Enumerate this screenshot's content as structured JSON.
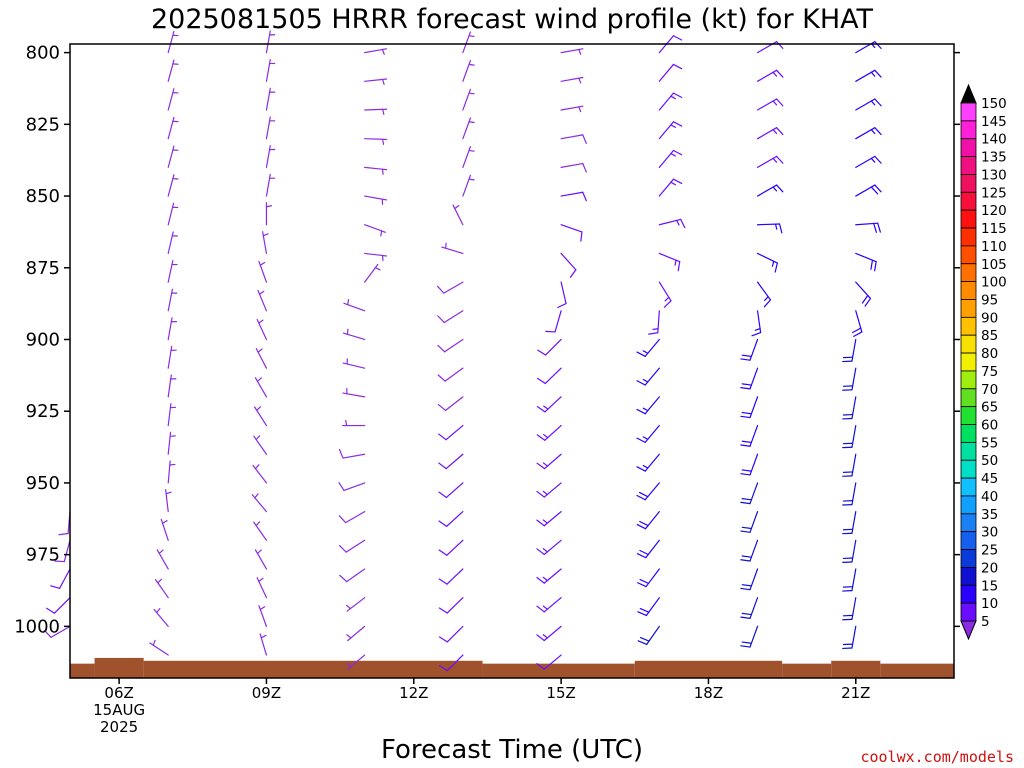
{
  "chart_data": {
    "type": "wind_profile",
    "title": "2025081505 HRRR forecast wind profile (kt) for KHAT",
    "xlabel": "Forecast Time (UTC)",
    "ylabel": "",
    "credit": "coolwx.com/models",
    "y_axis": {
      "ticks": [
        800,
        825,
        850,
        875,
        900,
        925,
        950,
        975,
        1000
      ],
      "ylim": [
        797,
        1018
      ],
      "inverted": true
    },
    "x_axis": {
      "ticks": [
        {
          "hour": 6,
          "label": "06Z",
          "sub1": "15AUG",
          "sub2": "2025"
        },
        {
          "hour": 9,
          "label": "09Z",
          "sub1": "",
          "sub2": ""
        },
        {
          "hour": 12,
          "label": "12Z",
          "sub1": "",
          "sub2": ""
        },
        {
          "hour": 15,
          "label": "15Z",
          "sub1": "",
          "sub2": ""
        },
        {
          "hour": 18,
          "label": "18Z",
          "sub1": "",
          "sub2": ""
        },
        {
          "hour": 21,
          "label": "21Z",
          "sub1": "",
          "sub2": ""
        }
      ],
      "xlim": [
        5.0,
        23.0
      ]
    },
    "terrain_color": "#a0522d",
    "terrain": [
      {
        "from": 5.0,
        "to": 5.5,
        "p": 1013
      },
      {
        "from": 5.5,
        "to": 6.5,
        "p": 1011
      },
      {
        "from": 6.5,
        "to": 13.4,
        "p": 1012
      },
      {
        "from": 13.4,
        "to": 16.5,
        "p": 1013
      },
      {
        "from": 16.5,
        "to": 19.5,
        "p": 1012
      },
      {
        "from": 19.5,
        "to": 20.5,
        "p": 1013
      },
      {
        "from": 20.5,
        "to": 21.5,
        "p": 1012
      },
      {
        "from": 21.5,
        "to": 23.0,
        "p": 1013
      }
    ],
    "levels": [
      800,
      810,
      820,
      830,
      840,
      850,
      860,
      870,
      880,
      890,
      900,
      910,
      920,
      930,
      940,
      950,
      960,
      970,
      980,
      990,
      1000,
      1010
    ],
    "series": [
      {
        "hour": 5.0,
        "bottom": 1000,
        "profile": [
          [
            960,
            185,
            8
          ],
          [
            975,
            200,
            10
          ],
          [
            990,
            225,
            10
          ],
          [
            1000,
            240,
            8
          ]
        ]
      },
      {
        "hour": 7.0,
        "bottom": 1012,
        "profile": [
          [
            800,
            15,
            5
          ],
          [
            850,
            15,
            5
          ],
          [
            900,
            10,
            5
          ],
          [
            950,
            5,
            5
          ],
          [
            980,
            330,
            5
          ],
          [
            1000,
            320,
            5
          ],
          [
            1012,
            300,
            5
          ]
        ]
      },
      {
        "hour": 9.0,
        "bottom": 1015,
        "profile": [
          [
            800,
            10,
            5
          ],
          [
            850,
            10,
            5
          ],
          [
            880,
            340,
            5
          ],
          [
            920,
            330,
            7
          ],
          [
            960,
            320,
            7
          ],
          [
            1000,
            340,
            7
          ],
          [
            1015,
            345,
            4
          ]
        ]
      },
      {
        "hour": 11.0,
        "bottom": 1012,
        "profile": [
          [
            800,
            80,
            5
          ],
          [
            850,
            100,
            5
          ],
          [
            860,
            110,
            4
          ],
          [
            875,
            90,
            5
          ],
          [
            890,
            290,
            6
          ],
          [
            920,
            280,
            7
          ],
          [
            960,
            240,
            8
          ],
          [
            1000,
            230,
            7
          ],
          [
            1012,
            230,
            6
          ]
        ]
      },
      {
        "hour": 13.0,
        "bottom": 1010,
        "profile": [
          [
            800,
            20,
            5
          ],
          [
            850,
            20,
            6
          ],
          [
            880,
            240,
            8
          ],
          [
            930,
            230,
            10
          ],
          [
            1000,
            225,
            10
          ],
          [
            1010,
            225,
            10
          ]
        ]
      },
      {
        "hour": 15.0,
        "bottom": 1010,
        "profile": [
          [
            800,
            80,
            5
          ],
          [
            850,
            80,
            10
          ],
          [
            900,
            225,
            12
          ],
          [
            950,
            230,
            14
          ],
          [
            1000,
            230,
            14
          ],
          [
            1010,
            230,
            12
          ]
        ]
      },
      {
        "hour": 17.0,
        "bottom": 1005,
        "profile": [
          [
            800,
            40,
            12
          ],
          [
            850,
            40,
            14
          ],
          [
            900,
            220,
            15
          ],
          [
            950,
            220,
            18
          ],
          [
            1000,
            215,
            20
          ],
          [
            1005,
            215,
            20
          ]
        ]
      },
      {
        "hour": 19.0,
        "bottom": 1005,
        "profile": [
          [
            800,
            60,
            12
          ],
          [
            850,
            60,
            15
          ],
          [
            900,
            200,
            18
          ],
          [
            950,
            200,
            20
          ],
          [
            1000,
            200,
            20
          ],
          [
            1005,
            200,
            20
          ]
        ]
      },
      {
        "hour": 21.0,
        "bottom": 1005,
        "profile": [
          [
            800,
            60,
            15
          ],
          [
            850,
            60,
            18
          ],
          [
            900,
            190,
            20
          ],
          [
            950,
            190,
            22
          ],
          [
            1000,
            190,
            20
          ],
          [
            1005,
            190,
            20
          ]
        ]
      }
    ],
    "colorbar": {
      "values": [
        5,
        10,
        15,
        20,
        25,
        30,
        35,
        40,
        45,
        50,
        55,
        60,
        65,
        70,
        75,
        80,
        85,
        90,
        95,
        100,
        105,
        110,
        115,
        120,
        125,
        130,
        135,
        140,
        145,
        150
      ],
      "colors": [
        "#8a2be2",
        "#6a0dff",
        "#2a00ff",
        "#1010d0",
        "#0a3ad8",
        "#1560f0",
        "#1a80f5",
        "#10a0ff",
        "#10c0ff",
        "#00e0c8",
        "#00e0a0",
        "#00e060",
        "#20e030",
        "#60e020",
        "#a0ee10",
        "#f0f000",
        "#f8e000",
        "#ffc000",
        "#ffa000",
        "#ff8c00",
        "#ff7000",
        "#ff5000",
        "#ff3000",
        "#ff1010",
        "#f8103a",
        "#f01060",
        "#f01080",
        "#f010a8",
        "#ff20d8",
        "#ff40ff"
      ],
      "low_color": "#8a2be2",
      "high_color": "#000000"
    }
  }
}
